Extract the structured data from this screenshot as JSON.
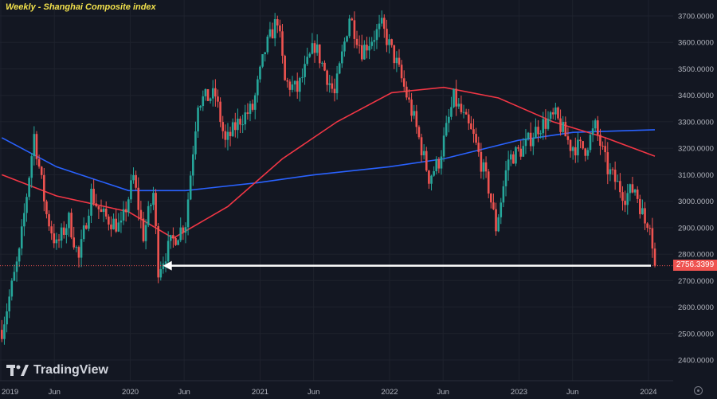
{
  "header": {
    "title": "Weekly - Shanghai Composite index"
  },
  "branding": {
    "logo_text": "TradingView"
  },
  "chart_data": {
    "type": "candlestick",
    "title": "Weekly - Shanghai Composite index",
    "ylim": [
      2350,
      3760
    ],
    "y_ticks": [
      "2400.0000",
      "2500.0000",
      "2600.0000",
      "2700.0000",
      "2800.0000",
      "2900.0000",
      "3000.0000",
      "3100.0000",
      "3200.0000",
      "3300.0000",
      "3400.0000",
      "3500.0000",
      "3600.0000",
      "3700.0000"
    ],
    "x_ticks": [
      "2019",
      "Jun",
      "2020",
      "Jun",
      "2021",
      "Jun",
      "2022",
      "Jun",
      "2023",
      "Jun",
      "2024"
    ],
    "last_price_label": "2756.3399",
    "last_price": 2756.34,
    "annotation": {
      "type": "arrow",
      "from_date": "2024-01-19",
      "to_date": "2020-03-20",
      "value": 2756.34
    },
    "anchors": [
      [
        "2019-01-04",
        2514
      ],
      [
        "2019-02-22",
        2800
      ],
      [
        "2019-04-05",
        3250
      ],
      [
        "2019-05-10",
        2950
      ],
      [
        "2019-06-07",
        2830
      ],
      [
        "2019-07-12",
        2930
      ],
      [
        "2019-08-09",
        2780
      ],
      [
        "2019-09-13",
        3030
      ],
      [
        "2019-10-11",
        2950
      ],
      [
        "2019-12-06",
        2900
      ],
      [
        "2020-01-10",
        3090
      ],
      [
        "2020-02-07",
        2870
      ],
      [
        "2020-03-06",
        3030
      ],
      [
        "2020-03-20",
        2745
      ],
      [
        "2020-04-24",
        2840
      ],
      [
        "2020-06-05",
        2920
      ],
      [
        "2020-07-10",
        3380
      ],
      [
        "2020-08-28",
        3400
      ],
      [
        "2020-09-25",
        3220
      ],
      [
        "2020-11-06",
        3310
      ],
      [
        "2020-12-11",
        3350
      ],
      [
        "2021-01-15",
        3570
      ],
      [
        "2021-02-19",
        3690
      ],
      [
        "2021-03-12",
        3450
      ],
      [
        "2021-04-16",
        3420
      ],
      [
        "2021-06-04",
        3590
      ],
      [
        "2021-07-30",
        3400
      ],
      [
        "2021-09-10",
        3700
      ],
      [
        "2021-10-15",
        3570
      ],
      [
        "2021-12-10",
        3660
      ],
      [
        "2022-01-21",
        3520
      ],
      [
        "2022-03-11",
        3310
      ],
      [
        "2022-04-22",
        3090
      ],
      [
        "2022-05-20",
        3150
      ],
      [
        "2022-07-01",
        3390
      ],
      [
        "2022-08-26",
        3240
      ],
      [
        "2022-10-07",
        3050
      ],
      [
        "2022-10-28",
        2900
      ],
      [
        "2022-12-02",
        3160
      ],
      [
        "2023-01-13",
        3200
      ],
      [
        "2023-02-24",
        3280
      ],
      [
        "2023-04-14",
        3320
      ],
      [
        "2023-05-26",
        3210
      ],
      [
        "2023-07-07",
        3200
      ],
      [
        "2023-08-04",
        3280
      ],
      [
        "2023-09-08",
        3120
      ],
      [
        "2023-10-27",
        3020
      ],
      [
        "2023-11-24",
        3050
      ],
      [
        "2023-12-22",
        2920
      ],
      [
        "2024-01-05",
        2930
      ],
      [
        "2024-01-19",
        2756.34
      ]
    ],
    "series": [
      {
        "name": "",
        "color": "#2962ff",
        "points": [
          [
            "2019-01-04",
            3240
          ],
          [
            "2019-06-07",
            3130
          ],
          [
            "2019-12-27",
            3040
          ],
          [
            "2020-06-05",
            3040
          ],
          [
            "2020-12-25",
            3070
          ],
          [
            "2021-06-04",
            3100
          ],
          [
            "2021-12-31",
            3130
          ],
          [
            "2022-06-03",
            3160
          ],
          [
            "2022-12-30",
            3230
          ],
          [
            "2023-06-02",
            3260
          ],
          [
            "2024-01-19",
            3270
          ]
        ]
      },
      {
        "name": "",
        "color": "#f23645",
        "points": [
          [
            "2019-01-04",
            3100
          ],
          [
            "2019-06-07",
            3020
          ],
          [
            "2019-12-27",
            2960
          ],
          [
            "2020-05-01",
            2860
          ],
          [
            "2020-10-02",
            2980
          ],
          [
            "2021-03-05",
            3160
          ],
          [
            "2021-08-06",
            3300
          ],
          [
            "2022-01-07",
            3410
          ],
          [
            "2022-06-03",
            3430
          ],
          [
            "2022-11-04",
            3390
          ],
          [
            "2023-04-07",
            3300
          ],
          [
            "2023-09-01",
            3240
          ],
          [
            "2024-01-19",
            3170
          ]
        ]
      }
    ],
    "colors": {
      "up": "#26a69a",
      "down": "#ef5350",
      "background": "#131722",
      "grid": "#1e222d",
      "axis_text": "#b2b5be",
      "arrow": "#ffffff"
    }
  }
}
